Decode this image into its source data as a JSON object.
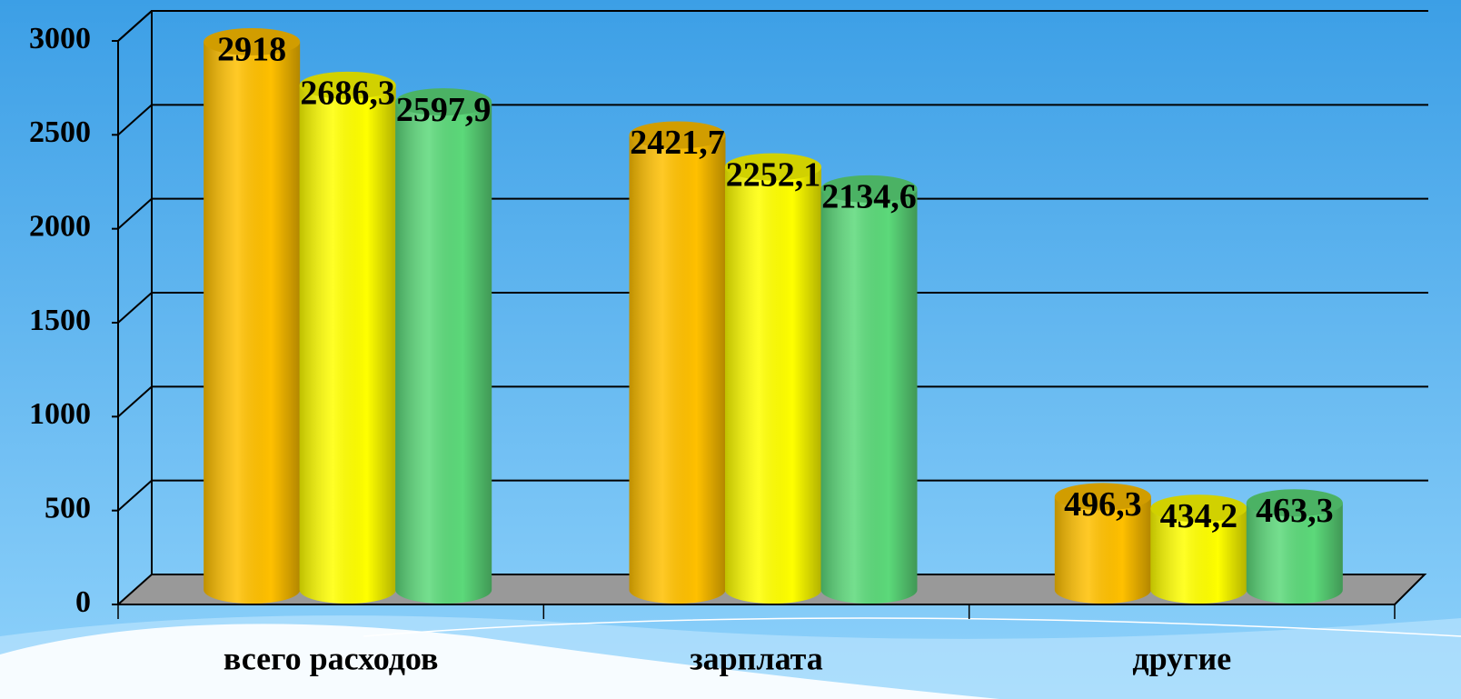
{
  "chart_data": {
    "type": "bar3d",
    "categories": [
      "всего расходов",
      "зарплата",
      "другие"
    ],
    "series": [
      {
        "color": "#ffc000",
        "values": [
          2918,
          2421.7,
          496.3
        ],
        "value_labels": [
          "2918",
          "2421,7",
          "496,3"
        ]
      },
      {
        "color": "#ffff00",
        "values": [
          2686.3,
          2252.1,
          434.2
        ],
        "value_labels": [
          "2686,3",
          "2252,1",
          "434,2"
        ]
      },
      {
        "color": "#5cd97a",
        "values": [
          2597.9,
          2134.6,
          463.3
        ],
        "value_labels": [
          "2597,9",
          "2134,6",
          "463,3"
        ]
      }
    ],
    "ylim": [
      0,
      3000
    ],
    "yticks": [
      0,
      500,
      1000,
      1500,
      2000,
      2500,
      3000
    ],
    "grid": true
  }
}
